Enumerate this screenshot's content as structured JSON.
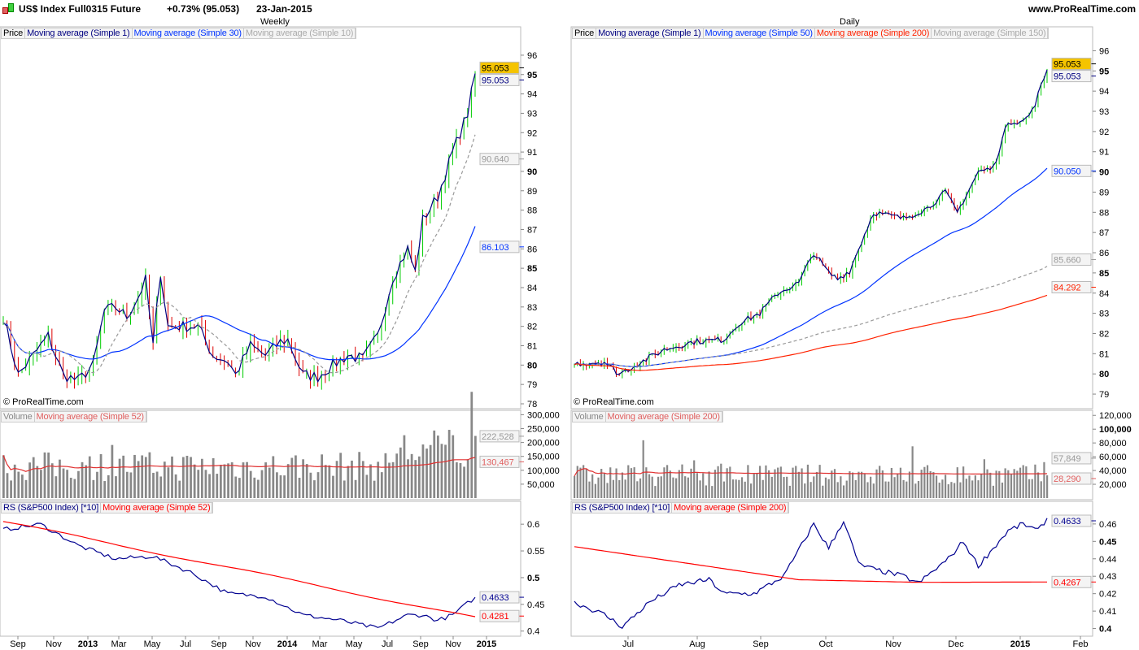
{
  "header": {
    "title": "US$ Index Full0315 Future",
    "change": "+0.73% (95.053)",
    "date": "23-Jan-2015",
    "site": "www.ProRealTime.com"
  },
  "colors": {
    "up": "#00cc00",
    "down": "#dd0000",
    "ma1": "#000080",
    "ma_blue": "#0033ff",
    "ma_gray": "#999999",
    "ma_red": "#ff2200",
    "last": "#f5c400"
  },
  "left": {
    "period": "Weekly",
    "copyright": "© ProRealTime.com",
    "price_legend": [
      "Price",
      "Moving average (Simple 1)",
      "Moving average (Simple 30)",
      "Moving average (Simple 10)"
    ],
    "volume_legend": [
      "Volume",
      "Moving average (Simple 52)"
    ],
    "rs_legend": [
      "RS (S&P500 Index) [*10]",
      "Moving average (Simple 52)"
    ],
    "price_ticks": [
      "96",
      "95",
      "94",
      "93",
      "92",
      "91",
      "90",
      "89",
      "88",
      "87",
      "86",
      "85",
      "84",
      "83",
      "82",
      "81",
      "80",
      "79",
      "78"
    ],
    "price_badges": {
      "last": "95.053",
      "ma1": "95.053",
      "ma10": "90.640",
      "ma30": "86.103"
    },
    "volume_ticks": [
      "300,000",
      "250,000",
      "200,000",
      "150,000",
      "100,000",
      "50,000"
    ],
    "volume_badges": {
      "vol": "222,528",
      "ma": "130,467"
    },
    "rs_ticks": [
      "0.6",
      "0.55",
      "0.5",
      "0.45",
      "0.4"
    ],
    "rs_badges": {
      "rs": "0.4633",
      "ma": "0.4281"
    },
    "x_labels": [
      "Sep",
      "Nov",
      "2013",
      "Mar",
      "May",
      "Jul",
      "Sep",
      "Nov",
      "2014",
      "Mar",
      "May",
      "Jul",
      "Sep",
      "Nov",
      "2015"
    ]
  },
  "right": {
    "period": "Daily",
    "copyright": "© ProRealTime.com",
    "price_legend": [
      "Price",
      "Moving average (Simple 1)",
      "Moving average (Simple 50)",
      "Moving average (Simple 200)",
      "Moving average (Simple 150)"
    ],
    "volume_legend": [
      "Volume",
      "Moving average (Simple 200)"
    ],
    "rs_legend": [
      "RS (S&P500 Index) [*10]",
      "Moving average (Simple 200)"
    ],
    "price_ticks": [
      "96",
      "95",
      "94",
      "93",
      "92",
      "91",
      "90",
      "89",
      "88",
      "87",
      "86",
      "85",
      "84",
      "83",
      "82",
      "81",
      "80",
      "79"
    ],
    "price_badges": {
      "last": "95.053",
      "ma1": "95.053",
      "ma50": "90.050",
      "ma150": "85.660",
      "ma200": "84.292"
    },
    "volume_ticks": [
      "120,000",
      "100,000",
      "80,000",
      "60,000",
      "40,000",
      "20,000"
    ],
    "volume_badges": {
      "vol": "57,849",
      "ma": "28,290"
    },
    "rs_ticks": [
      "0.46",
      "0.45",
      "0.44",
      "0.43",
      "0.42",
      "0.41",
      "0.4"
    ],
    "rs_badges": {
      "rs": "0.4633",
      "ma": "0.4267"
    },
    "x_labels": [
      "Jul",
      "Aug",
      "Sep",
      "Oct",
      "Nov",
      "Dec",
      "2015",
      "Feb"
    ]
  },
  "chart_data": [
    {
      "type": "line",
      "title": "Weekly",
      "ylim": [
        78,
        96.5
      ],
      "price_close_keypoints": [
        [
          0,
          82.5
        ],
        [
          4,
          79.5
        ],
        [
          8,
          80.5
        ],
        [
          12,
          81.5
        ],
        [
          16,
          79.5
        ],
        [
          20,
          79.2
        ],
        [
          24,
          80
        ],
        [
          27,
          82.8
        ],
        [
          30,
          83
        ],
        [
          33,
          82.5
        ],
        [
          36,
          83.5
        ],
        [
          38,
          84.4
        ],
        [
          40,
          81
        ],
        [
          42,
          84.8
        ],
        [
          44,
          82
        ],
        [
          48,
          82
        ],
        [
          52,
          82
        ],
        [
          56,
          80.5
        ],
        [
          60,
          80.2
        ],
        [
          62,
          79.5
        ],
        [
          66,
          81
        ],
        [
          70,
          80.5
        ],
        [
          74,
          81.2
        ],
        [
          76,
          81.3
        ],
        [
          80,
          79.5
        ],
        [
          84,
          79.4
        ],
        [
          88,
          80
        ],
        [
          92,
          80.5
        ],
        [
          96,
          80.3
        ],
        [
          100,
          81.5
        ],
        [
          104,
          84.5
        ],
        [
          108,
          86
        ],
        [
          110,
          84.8
        ],
        [
          112,
          87.5
        ],
        [
          116,
          88.7
        ],
        [
          120,
          91
        ],
        [
          124,
          93
        ],
        [
          126,
          95.05
        ]
      ],
      "rs_keypoints": [
        [
          0,
          0.59
        ],
        [
          10,
          0.6
        ],
        [
          20,
          0.56
        ],
        [
          30,
          0.535
        ],
        [
          40,
          0.54
        ],
        [
          50,
          0.51
        ],
        [
          60,
          0.47
        ],
        [
          70,
          0.465
        ],
        [
          80,
          0.43
        ],
        [
          90,
          0.42
        ],
        [
          100,
          0.405
        ],
        [
          108,
          0.43
        ],
        [
          112,
          0.43
        ],
        [
          116,
          0.42
        ],
        [
          120,
          0.43
        ],
        [
          126,
          0.4633
        ]
      ],
      "rs_ylim": [
        0.395,
        0.62
      ],
      "volume_ylim": [
        0,
        310000
      ]
    },
    {
      "type": "line",
      "title": "Daily",
      "ylim": [
        78.6,
        96.5
      ],
      "price_close_keypoints": [
        [
          0,
          80.5
        ],
        [
          10,
          80.6
        ],
        [
          15,
          80
        ],
        [
          20,
          80.4
        ],
        [
          30,
          81.2
        ],
        [
          40,
          81.6
        ],
        [
          50,
          81.7
        ],
        [
          55,
          82.5
        ],
        [
          62,
          83
        ],
        [
          68,
          84
        ],
        [
          75,
          84.5
        ],
        [
          80,
          86
        ],
        [
          85,
          85
        ],
        [
          88,
          84.7
        ],
        [
          92,
          85.1
        ],
        [
          100,
          88
        ],
        [
          110,
          87.7
        ],
        [
          118,
          88.2
        ],
        [
          124,
          89
        ],
        [
          128,
          88
        ],
        [
          135,
          90
        ],
        [
          140,
          90.2
        ],
        [
          145,
          92.5
        ],
        [
          150,
          92.5
        ],
        [
          153,
          93
        ],
        [
          158,
          95.05
        ]
      ],
      "rs_keypoints": [
        [
          0,
          0.415
        ],
        [
          10,
          0.408
        ],
        [
          16,
          0.401
        ],
        [
          25,
          0.415
        ],
        [
          35,
          0.425
        ],
        [
          45,
          0.428
        ],
        [
          50,
          0.42
        ],
        [
          60,
          0.42
        ],
        [
          70,
          0.43
        ],
        [
          80,
          0.46
        ],
        [
          85,
          0.446
        ],
        [
          90,
          0.462
        ],
        [
          95,
          0.437
        ],
        [
          100,
          0.434
        ],
        [
          110,
          0.43
        ],
        [
          115,
          0.426
        ],
        [
          125,
          0.44
        ],
        [
          130,
          0.45
        ],
        [
          135,
          0.436
        ],
        [
          145,
          0.456
        ],
        [
          150,
          0.46
        ],
        [
          155,
          0.456
        ],
        [
          158,
          0.4633
        ]
      ],
      "rs_ma_keypoints": [
        [
          0,
          0.447
        ],
        [
          75,
          0.428
        ],
        [
          115,
          0.4265
        ],
        [
          158,
          0.4267
        ]
      ],
      "rs_ylim": [
        0.397,
        0.466
      ],
      "volume_ylim": [
        0,
        125000
      ]
    }
  ]
}
